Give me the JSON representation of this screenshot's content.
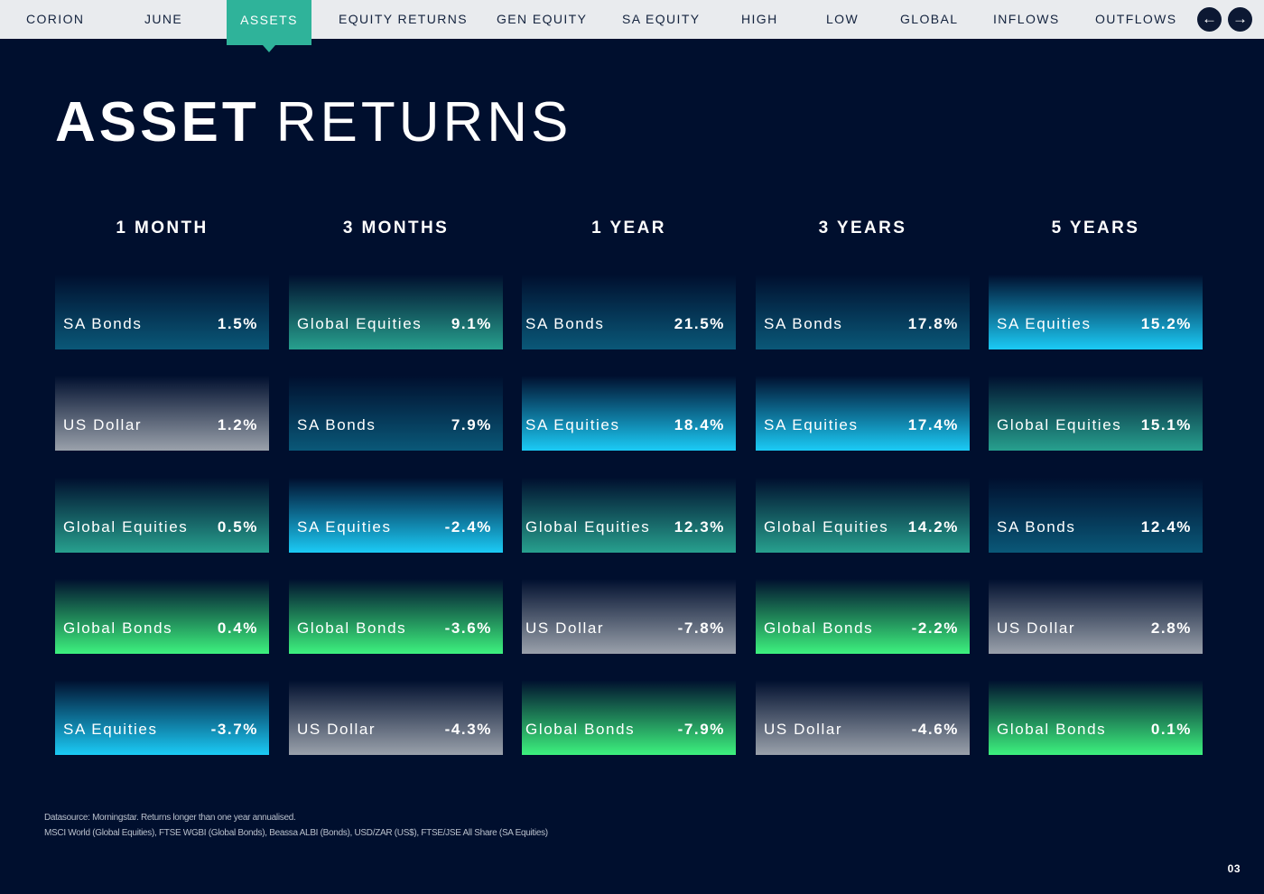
{
  "nav": {
    "items": [
      {
        "label": "CORION"
      },
      {
        "label": "JUNE"
      },
      {
        "label": "ASSETS",
        "active": true
      },
      {
        "label": "EQUITY RETURNS"
      },
      {
        "label": "GEN EQUITY"
      },
      {
        "label": "SA EQUITY"
      },
      {
        "label": "HIGH"
      },
      {
        "label": "LOW"
      },
      {
        "label": "GLOBAL"
      },
      {
        "label": "INFLOWS"
      },
      {
        "label": "OUTFLOWS"
      }
    ],
    "prev_icon": "arrow-left-icon",
    "next_icon": "arrow-right-icon",
    "prev_glyph": "←",
    "next_glyph": "→"
  },
  "title": {
    "bold": "ASSET",
    "light": "RETURNS"
  },
  "columns": [
    {
      "header": "1 MONTH",
      "rows": [
        {
          "asset": "SA Bonds",
          "value": "1.5%"
        },
        {
          "asset": "US Dollar",
          "value": "1.2%"
        },
        {
          "asset": "Global Equities",
          "value": "0.5%"
        },
        {
          "asset": "Global Bonds",
          "value": "0.4%"
        },
        {
          "asset": "SA Equities",
          "value": "-3.7%"
        }
      ]
    },
    {
      "header": "3 MONTHS",
      "rows": [
        {
          "asset": "Global Equities",
          "value": "9.1%"
        },
        {
          "asset": "SA Bonds",
          "value": "7.9%"
        },
        {
          "asset": "SA Equities",
          "value": "-2.4%"
        },
        {
          "asset": "Global Bonds",
          "value": "-3.6%"
        },
        {
          "asset": "US Dollar",
          "value": "-4.3%"
        }
      ]
    },
    {
      "header": "1 YEAR",
      "rows": [
        {
          "asset": "SA Bonds",
          "value": "21.5%"
        },
        {
          "asset": "SA Equities",
          "value": "18.4%"
        },
        {
          "asset": "Global Equities",
          "value": "12.3%"
        },
        {
          "asset": "US Dollar",
          "value": "-7.8%"
        },
        {
          "asset": "Global Bonds",
          "value": "-7.9%"
        }
      ]
    },
    {
      "header": "3 YEARS",
      "rows": [
        {
          "asset": "SA Bonds",
          "value": "17.8%"
        },
        {
          "asset": "SA Equities",
          "value": "17.4%"
        },
        {
          "asset": "Global Equities",
          "value": "14.2%"
        },
        {
          "asset": "Global Bonds",
          "value": "-2.2%"
        },
        {
          "asset": "US Dollar",
          "value": "-4.6%"
        }
      ]
    },
    {
      "header": "5 YEARS",
      "rows": [
        {
          "asset": "SA Equities",
          "value": "15.2%"
        },
        {
          "asset": "Global Equities",
          "value": "15.1%"
        },
        {
          "asset": "SA Bonds",
          "value": "12.4%"
        },
        {
          "asset": "US Dollar",
          "value": "2.8%"
        },
        {
          "asset": "Global Bonds",
          "value": "0.1%"
        }
      ]
    }
  ],
  "asset_colors": {
    "SA Bonds": "#0a5878",
    "US Dollar": "#9aa1ab",
    "Global Equities": "#27a08e",
    "Global Bonds": "#3df27e",
    "SA Equities": "#1bcbf6"
  },
  "footer": {
    "line1": "Datasource: Morningstar. Returns longer than one year annualised.",
    "line2": "MSCI World (Global Equities), FTSE WGBI (Global Bonds), Beassa ALBI (Bonds), USD/ZAR (US$), FTSE/JSE All Share (SA Equities)",
    "page_number": "03"
  }
}
